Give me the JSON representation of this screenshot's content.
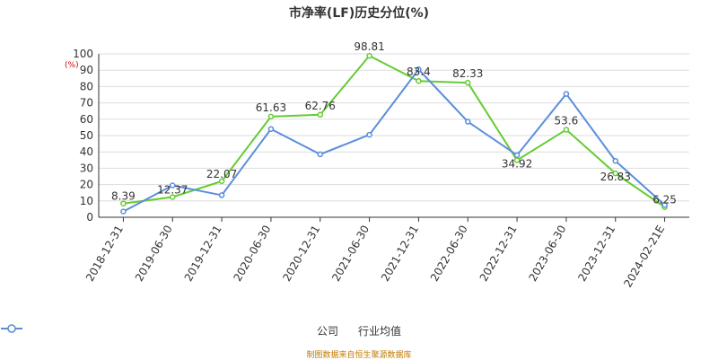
{
  "chart_data": {
    "type": "line",
    "title": "市净率(LF)历史分位(%)",
    "unit_label": "(%)",
    "categories": [
      "2018-12-31",
      "2019-06-30",
      "2019-12-31",
      "2020-06-30",
      "2020-12-31",
      "2021-06-30",
      "2021-12-31",
      "2022-06-30",
      "2022-12-31",
      "2023-06-30",
      "2023-12-31",
      "2024-02-21E"
    ],
    "ylim": [
      0,
      100
    ],
    "yticks": [
      0,
      10,
      20,
      30,
      40,
      50,
      60,
      70,
      80,
      90,
      100
    ],
    "grid": true,
    "legend_position": "bottom",
    "series": [
      {
        "name": "公司",
        "color": "#66cc33",
        "values": [
          8.39,
          12.37,
          22.07,
          61.63,
          62.76,
          98.81,
          83.4,
          82.33,
          34.92,
          53.6,
          26.83,
          6.25
        ],
        "labels": [
          "8.39",
          "12.37",
          "22.07",
          "61.63",
          "62.76",
          "98.81",
          "83.4",
          "82.33",
          "34.92",
          "53.6",
          "26.83",
          "6.25"
        ]
      },
      {
        "name": "行业均值",
        "color": "#5b8ddb",
        "values": [
          3.5,
          19.5,
          13.5,
          54,
          38.5,
          50.5,
          90.5,
          58.5,
          38,
          75.5,
          34.5,
          7.5
        ]
      }
    ]
  },
  "source": "制图数据来自恒生聚源数据库"
}
